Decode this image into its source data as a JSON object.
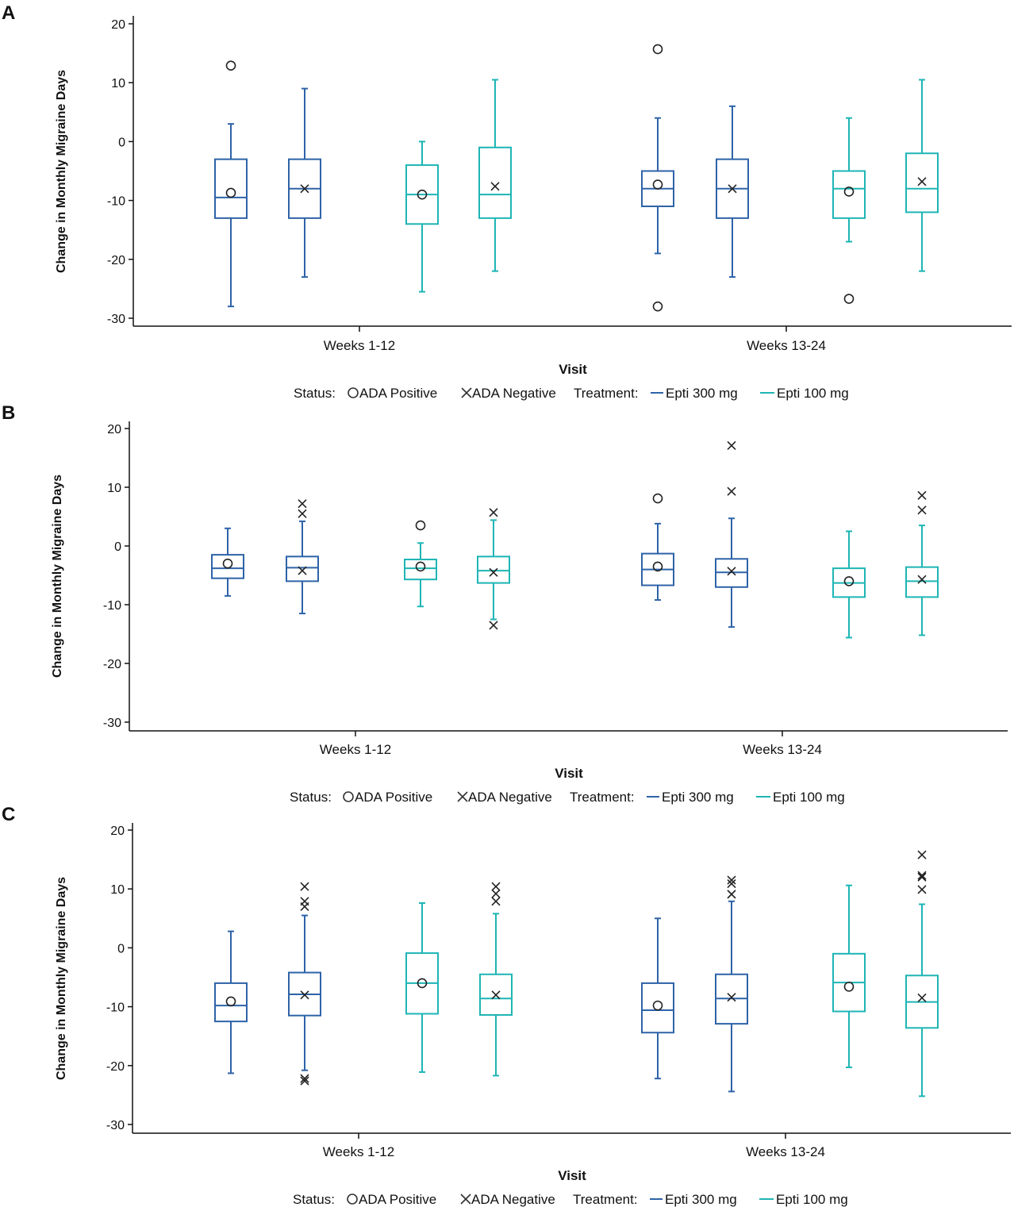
{
  "colors": {
    "epti300": "#2E63A8",
    "epti100": "#1EB5B5",
    "marker": "#222222",
    "axis": "#111111"
  },
  "chart_data": [
    {
      "panel": "A",
      "type": "box",
      "categories": [
        "Weeks 1-12",
        "Weeks 13-24"
      ],
      "xlabel": "Visit",
      "ylabel": "Change in Monthly Migraine Days",
      "ylim": [
        -31,
        21
      ],
      "yticks": [
        20,
        10,
        0,
        -10,
        -20,
        -30
      ],
      "legend": {
        "status_label": "Status:",
        "ada_pos": "ADA Positive",
        "ada_neg": "ADA Negative",
        "treatment_label": "Treatment:",
        "t300": "Epti 300 mg",
        "t100": "Epti 100 mg"
      },
      "boxes": [
        {
          "visit": "Weeks 1-12",
          "treatment": "Epti 300 mg",
          "status": "ADA Positive",
          "min": -28,
          "q1": -13,
          "median": -9.5,
          "q3": -3,
          "max": 3,
          "mean": -8.7,
          "outliers": [
            12.9
          ]
        },
        {
          "visit": "Weeks 1-12",
          "treatment": "Epti 300 mg",
          "status": "ADA Negative",
          "min": -23,
          "q1": -13,
          "median": -8,
          "q3": -3,
          "max": 9,
          "mean": -8,
          "outliers": []
        },
        {
          "visit": "Weeks 1-12",
          "treatment": "Epti 100 mg",
          "status": "ADA Positive",
          "min": -25.5,
          "q1": -14,
          "median": -9,
          "q3": -4,
          "max": 0,
          "mean": -9,
          "outliers": []
        },
        {
          "visit": "Weeks 1-12",
          "treatment": "Epti 100 mg",
          "status": "ADA Negative",
          "min": -22,
          "q1": -13,
          "median": -9,
          "q3": -1,
          "max": 10.5,
          "mean": -7.6,
          "outliers": []
        },
        {
          "visit": "Weeks 13-24",
          "treatment": "Epti 300 mg",
          "status": "ADA Positive",
          "min": -19,
          "q1": -11,
          "median": -8,
          "q3": -5,
          "max": 4,
          "mean": -7.3,
          "outliers": [
            15.7,
            -28
          ]
        },
        {
          "visit": "Weeks 13-24",
          "treatment": "Epti 300 mg",
          "status": "ADA Negative",
          "min": -23,
          "q1": -13,
          "median": -8,
          "q3": -3,
          "max": 6,
          "mean": -8,
          "outliers": []
        },
        {
          "visit": "Weeks 13-24",
          "treatment": "Epti 100 mg",
          "status": "ADA Positive",
          "min": -17,
          "q1": -13,
          "median": -8,
          "q3": -5,
          "max": 4,
          "mean": -8.5,
          "outliers": [
            -26.7
          ]
        },
        {
          "visit": "Weeks 13-24",
          "treatment": "Epti 100 mg",
          "status": "ADA Negative",
          "min": -22,
          "q1": -12,
          "median": -8,
          "q3": -2,
          "max": 10.5,
          "mean": -6.8,
          "outliers": []
        }
      ]
    },
    {
      "panel": "B",
      "type": "box",
      "categories": [
        "Weeks 1-12",
        "Weeks 13-24"
      ],
      "xlabel": "Visit",
      "ylabel": "Change in Monthly Migraine Days",
      "ylim": [
        -31,
        21
      ],
      "yticks": [
        20,
        10,
        0,
        -10,
        -20,
        -30
      ],
      "legend": {
        "status_label": "Status:",
        "ada_pos": "ADA Positive",
        "ada_neg": "ADA Negative",
        "treatment_label": "Treatment:",
        "t300": "Epti 300 mg",
        "t100": "Epti 100 mg"
      },
      "boxes": [
        {
          "visit": "Weeks 1-12",
          "treatment": "Epti 300 mg",
          "status": "ADA Positive",
          "min": -8.5,
          "q1": -5.5,
          "median": -3.8,
          "q3": -1.5,
          "max": 3,
          "mean": -3,
          "outliers": []
        },
        {
          "visit": "Weeks 1-12",
          "treatment": "Epti 300 mg",
          "status": "ADA Negative",
          "min": -11.5,
          "q1": -6,
          "median": -3.7,
          "q3": -1.8,
          "max": 4.2,
          "mean": -4.2,
          "outliers": [
            7.2,
            5.5
          ]
        },
        {
          "visit": "Weeks 1-12",
          "treatment": "Epti 100 mg",
          "status": "ADA Positive",
          "min": -10.3,
          "q1": -5.7,
          "median": -3.8,
          "q3": -2.3,
          "max": 0.5,
          "mean": -3.5,
          "outliers": [
            3.5
          ]
        },
        {
          "visit": "Weeks 1-12",
          "treatment": "Epti 100 mg",
          "status": "ADA Negative",
          "min": -12.5,
          "q1": -6.3,
          "median": -4.2,
          "q3": -1.8,
          "max": 4.4,
          "mean": -4.5,
          "outliers": [
            5.7,
            -13.5
          ]
        },
        {
          "visit": "Weeks 13-24",
          "treatment": "Epti 300 mg",
          "status": "ADA Positive",
          "min": -9.2,
          "q1": -6.7,
          "median": -4,
          "q3": -1.3,
          "max": 3.8,
          "mean": -3.5,
          "outliers": [
            8.1
          ]
        },
        {
          "visit": "Weeks 13-24",
          "treatment": "Epti 300 mg",
          "status": "ADA Negative",
          "min": -13.8,
          "q1": -7,
          "median": -4.5,
          "q3": -2.2,
          "max": 4.7,
          "mean": -4.3,
          "outliers": [
            17.1,
            9.3
          ]
        },
        {
          "visit": "Weeks 13-24",
          "treatment": "Epti 100 mg",
          "status": "ADA Positive",
          "min": -15.6,
          "q1": -8.7,
          "median": -6.3,
          "q3": -3.8,
          "max": 2.5,
          "mean": -6,
          "outliers": []
        },
        {
          "visit": "Weeks 13-24",
          "treatment": "Epti 100 mg",
          "status": "ADA Negative",
          "min": -15.2,
          "q1": -8.7,
          "median": -6,
          "q3": -3.6,
          "max": 3.5,
          "mean": -5.7,
          "outliers": [
            8.6,
            6.1
          ]
        }
      ]
    },
    {
      "panel": "C",
      "type": "box",
      "categories": [
        "Weeks 1-12",
        "Weeks 13-24"
      ],
      "xlabel": "Visit",
      "ylabel": "Change in Monthly Migraine Days",
      "ylim": [
        -31,
        21
      ],
      "yticks": [
        20,
        10,
        0,
        -10,
        -20,
        -30
      ],
      "legend": {
        "status_label": "Status:",
        "ada_pos": "ADA Positive",
        "ada_neg": "ADA Negative",
        "treatment_label": "Treatment:",
        "t300": "Epti 300 mg",
        "t100": "Epti 100 mg"
      },
      "boxes": [
        {
          "visit": "Weeks 1-12",
          "treatment": "Epti 300 mg",
          "status": "ADA Positive",
          "min": -21.3,
          "q1": -12.5,
          "median": -9.8,
          "q3": -6,
          "max": 2.8,
          "mean": -9.1,
          "outliers": []
        },
        {
          "visit": "Weeks 1-12",
          "treatment": "Epti 300 mg",
          "status": "ADA Negative",
          "min": -20.8,
          "q1": -11.5,
          "median": -7.9,
          "q3": -4.2,
          "max": 5.5,
          "mean": -8,
          "outliers": [
            10.4,
            7.9,
            7,
            -22.2,
            -22.6
          ]
        },
        {
          "visit": "Weeks 1-12",
          "treatment": "Epti 100 mg",
          "status": "ADA Positive",
          "min": -21.1,
          "q1": -11.2,
          "median": -6,
          "q3": -0.9,
          "max": 7.6,
          "mean": -6,
          "outliers": []
        },
        {
          "visit": "Weeks 1-12",
          "treatment": "Epti 100 mg",
          "status": "ADA Negative",
          "min": -21.7,
          "q1": -11.4,
          "median": -8.6,
          "q3": -4.5,
          "max": 5.8,
          "mean": -8,
          "outliers": [
            10.4,
            9.2,
            7.9
          ]
        },
        {
          "visit": "Weeks 13-24",
          "treatment": "Epti 300 mg",
          "status": "ADA Positive",
          "min": -22.2,
          "q1": -14.4,
          "median": -10.6,
          "q3": -6,
          "max": 5,
          "mean": -9.8,
          "outliers": []
        },
        {
          "visit": "Weeks 13-24",
          "treatment": "Epti 300 mg",
          "status": "ADA Negative",
          "min": -24.4,
          "q1": -12.9,
          "median": -8.6,
          "q3": -4.5,
          "max": 7.9,
          "mean": -8.4,
          "outliers": [
            11.5,
            10.9,
            9.1
          ]
        },
        {
          "visit": "Weeks 13-24",
          "treatment": "Epti 100 mg",
          "status": "ADA Positive",
          "min": -20.3,
          "q1": -10.8,
          "median": -5.9,
          "q3": -1,
          "max": 10.6,
          "mean": -6.6,
          "outliers": []
        },
        {
          "visit": "Weeks 13-24",
          "treatment": "Epti 100 mg",
          "status": "ADA Negative",
          "min": -25.2,
          "q1": -13.6,
          "median": -9.2,
          "q3": -4.7,
          "max": 7.4,
          "mean": -8.5,
          "outliers": [
            15.8,
            12.3,
            12,
            9.9
          ]
        }
      ]
    }
  ]
}
